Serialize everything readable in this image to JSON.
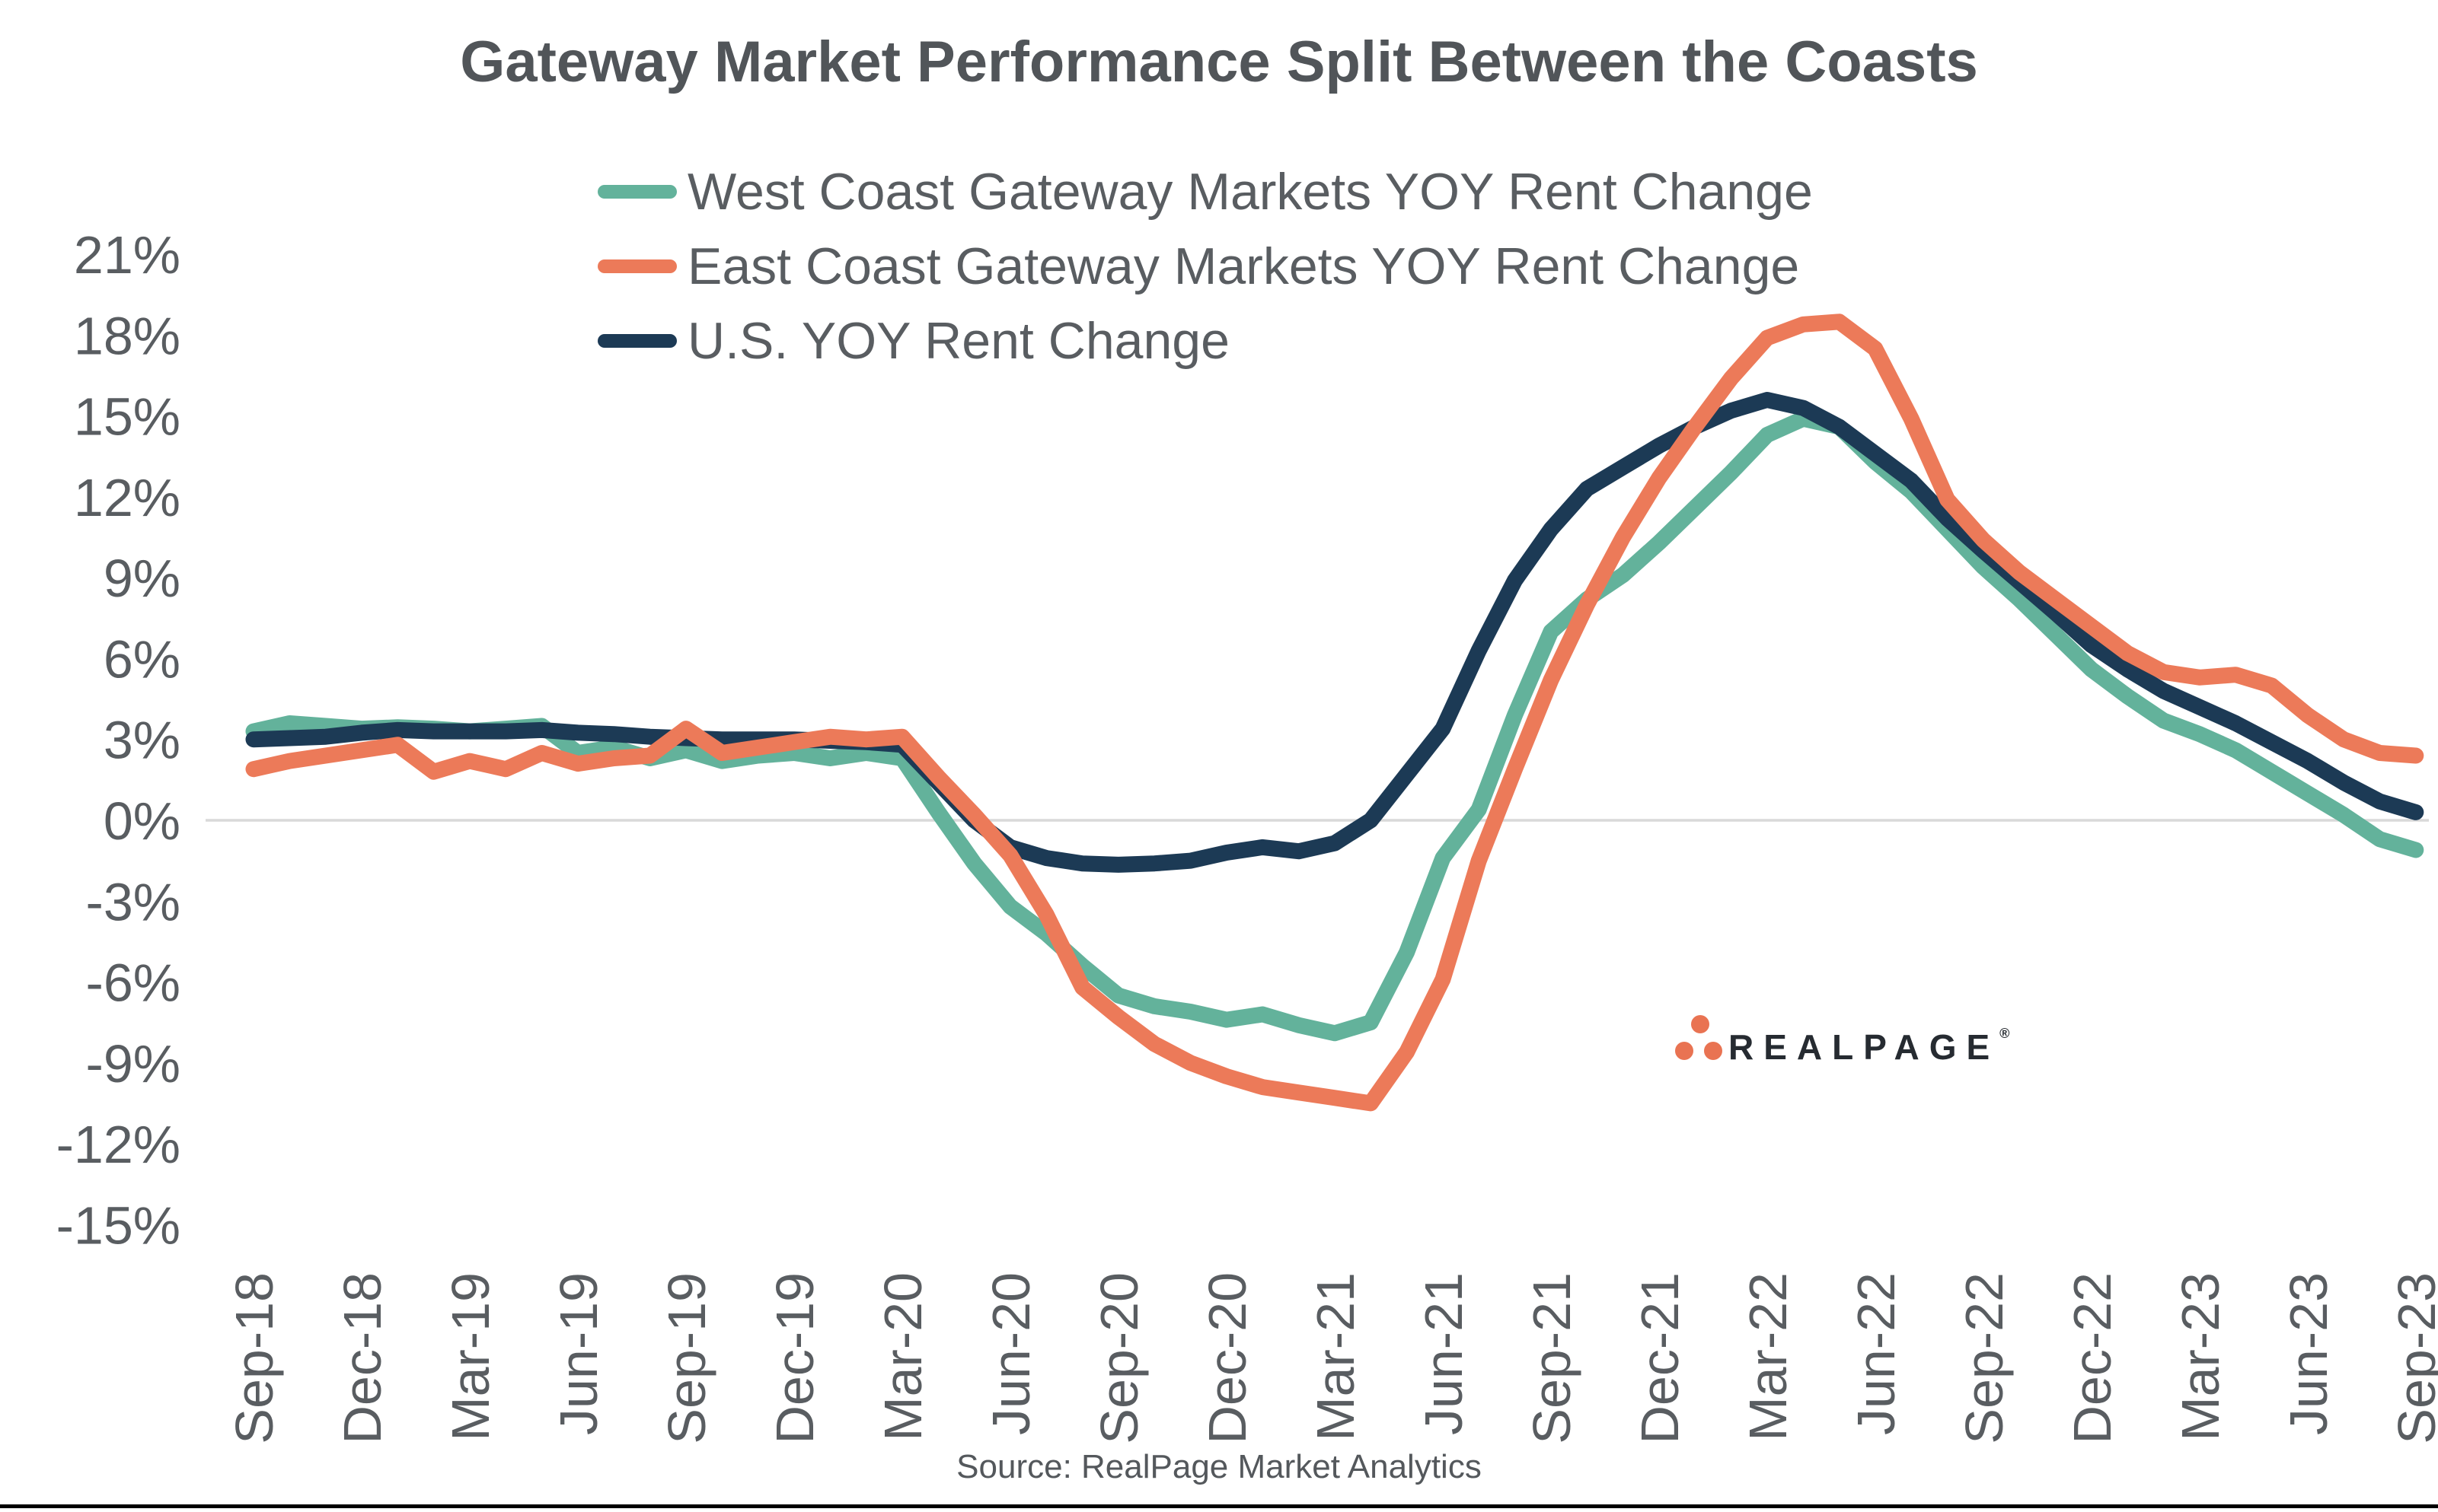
{
  "title": "Gateway Market Performance Split Between the Coasts",
  "footer": {
    "source_label": "Source: RealPage Market Analytics"
  },
  "logo": {
    "wordmark": "REALPAGE",
    "registered_mark": "®",
    "dot_color": "#e97352",
    "text_color": "#262b31"
  },
  "colors": {
    "background": "#ffffff",
    "title_text": "#515559",
    "axis_text": "#595d61",
    "legend_text": "#595d61",
    "zero_gridline": "#d9d9d9",
    "west_series": "#63b29b",
    "east_series": "#ec7a59",
    "us_series": "#1c3a55"
  },
  "chart_data": {
    "type": "line",
    "title": "Gateway Market Performance Split Between the Coasts",
    "xlabel": "",
    "ylabel": "",
    "ylim": [
      -15,
      21
    ],
    "y_tick_step": 3,
    "grid": "zero-line-only",
    "legend_position": "top-center",
    "y_tick_labels": [
      "21%",
      "18%",
      "15%",
      "12%",
      "9%",
      "6%",
      "3%",
      "0%",
      "-3%",
      "-6%",
      "-9%",
      "-12%",
      "-15%"
    ],
    "x_tick_labels": [
      "Sep-18",
      "Dec-18",
      "Mar-19",
      "Jun-19",
      "Sep-19",
      "Dec-19",
      "Mar-20",
      "Jun-20",
      "Sep-20",
      "Dec-20",
      "Mar-21",
      "Jun-21",
      "Sep-21",
      "Dec-21",
      "Mar-22",
      "Jun-22",
      "Sep-22",
      "Dec-22",
      "Mar-23",
      "Jun-23",
      "Sep-23"
    ],
    "x": [
      "Sep-18",
      "Oct-18",
      "Nov-18",
      "Dec-18",
      "Jan-19",
      "Feb-19",
      "Mar-19",
      "Apr-19",
      "May-19",
      "Jun-19",
      "Jul-19",
      "Aug-19",
      "Sep-19",
      "Oct-19",
      "Nov-19",
      "Dec-19",
      "Jan-20",
      "Feb-20",
      "Mar-20",
      "Apr-20",
      "May-20",
      "Jun-20",
      "Jul-20",
      "Aug-20",
      "Sep-20",
      "Oct-20",
      "Nov-20",
      "Dec-20",
      "Jan-21",
      "Feb-21",
      "Mar-21",
      "Apr-21",
      "May-21",
      "Jun-21",
      "Jul-21",
      "Aug-21",
      "Sep-21",
      "Oct-21",
      "Nov-21",
      "Dec-21",
      "Jan-22",
      "Feb-22",
      "Mar-22",
      "Apr-22",
      "May-22",
      "Jun-22",
      "Jul-22",
      "Aug-22",
      "Sep-22",
      "Oct-22",
      "Nov-22",
      "Dec-22",
      "Jan-23",
      "Feb-23",
      "Mar-23",
      "Apr-23",
      "May-23",
      "Jun-23",
      "Jul-23",
      "Aug-23",
      "Sep-23"
    ],
    "series": [
      {
        "name": "West Coast Gateway Markets YOY Rent Change",
        "color": "#63b29b",
        "values": [
          3.3,
          3.6,
          3.5,
          3.4,
          3.45,
          3.4,
          3.3,
          3.4,
          3.5,
          2.5,
          2.7,
          2.3,
          2.6,
          2.2,
          2.4,
          2.5,
          2.3,
          2.5,
          2.3,
          0.3,
          -1.6,
          -3.2,
          -4.2,
          -5.4,
          -6.5,
          -6.9,
          -7.1,
          -7.4,
          -7.2,
          -7.6,
          -7.9,
          -7.5,
          -4.9,
          -1.4,
          0.4,
          3.9,
          7.0,
          8.2,
          9.1,
          10.3,
          11.6,
          12.9,
          14.3,
          14.9,
          14.6,
          13.3,
          12.2,
          10.8,
          9.4,
          8.2,
          6.9,
          5.6,
          4.6,
          3.7,
          3.2,
          2.6,
          1.8,
          1.0,
          0.2,
          -0.7,
          -1.1
        ]
      },
      {
        "name": "East Coast Gateway Markets YOY Rent Change",
        "color": "#ec7a59",
        "values": [
          1.9,
          2.2,
          2.4,
          2.6,
          2.8,
          1.8,
          2.2,
          1.9,
          2.5,
          2.1,
          2.3,
          2.4,
          3.4,
          2.5,
          2.7,
          2.9,
          3.1,
          3.0,
          3.1,
          1.6,
          0.2,
          -1.3,
          -3.5,
          -6.2,
          -7.3,
          -8.3,
          -9.0,
          -9.5,
          -9.9,
          -10.1,
          -10.3,
          -10.5,
          -8.6,
          -5.9,
          -1.5,
          1.9,
          5.2,
          8.0,
          10.5,
          12.7,
          14.6,
          16.4,
          17.9,
          18.4,
          18.5,
          17.5,
          14.9,
          11.9,
          10.4,
          9.2,
          8.2,
          7.2,
          6.2,
          5.5,
          5.3,
          5.4,
          5.0,
          3.9,
          3.0,
          2.5,
          2.4
        ]
      },
      {
        "name": "U.S. YOY Rent Change",
        "color": "#1c3a55",
        "values": [
          3.0,
          3.05,
          3.1,
          3.25,
          3.35,
          3.3,
          3.3,
          3.3,
          3.35,
          3.25,
          3.2,
          3.1,
          3.05,
          3.0,
          3.0,
          3.0,
          2.95,
          2.9,
          2.8,
          1.4,
          0.0,
          -1.0,
          -1.4,
          -1.6,
          -1.65,
          -1.6,
          -1.5,
          -1.2,
          -1.0,
          -1.15,
          -0.85,
          0.0,
          1.7,
          3.4,
          6.3,
          8.9,
          10.8,
          12.3,
          13.1,
          13.9,
          14.6,
          15.2,
          15.6,
          15.3,
          14.6,
          13.6,
          12.6,
          11.2,
          10.0,
          8.85,
          7.7,
          6.5,
          5.6,
          4.8,
          4.2,
          3.6,
          2.9,
          2.2,
          1.4,
          0.7,
          0.3
        ]
      }
    ]
  }
}
